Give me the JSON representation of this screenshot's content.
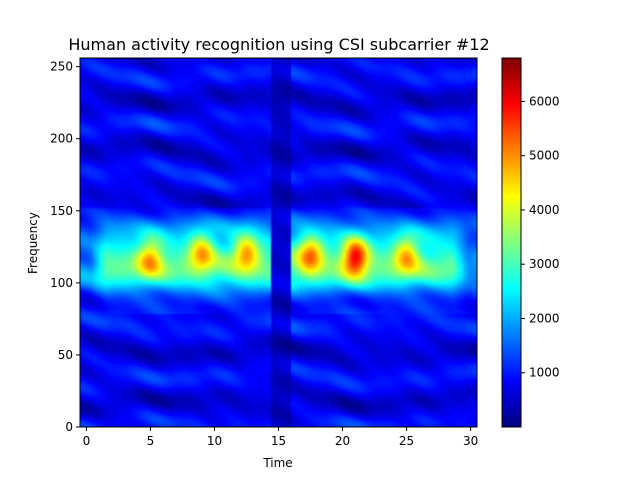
{
  "chart_data": {
    "type": "heatmap",
    "title": "Human activity recognition using CSI subcarrier #12",
    "xlabel": "Time",
    "ylabel": "Frequency",
    "xlim": [
      -0.5,
      30.5
    ],
    "ylim": [
      0,
      256
    ],
    "x_ticks": [
      0,
      5,
      10,
      15,
      20,
      25,
      30
    ],
    "y_ticks": [
      0,
      50,
      100,
      150,
      200,
      250
    ],
    "colormap": "jet",
    "colorbar": {
      "vmin": 0,
      "vmax": 6800,
      "ticks": [
        1000,
        2000,
        3000,
        4000,
        5000,
        6000
      ]
    },
    "grid": false,
    "legend": "none",
    "description_of_values": {
      "background_level": 900,
      "band_center_frequency": 115,
      "band_half_width": 28,
      "band_level": 3200,
      "quiet_time_range": [
        14.5,
        16
      ]
    },
    "hotspots": [
      {
        "time": 5,
        "frequency": 118,
        "value": 5200
      },
      {
        "time": 9,
        "frequency": 122,
        "value": 5300
      },
      {
        "time": 12.5,
        "frequency": 122,
        "value": 5400
      },
      {
        "time": 17.5,
        "frequency": 120,
        "value": 5600
      },
      {
        "time": 21,
        "frequency": 118,
        "value": 6500
      },
      {
        "time": 25,
        "frequency": 120,
        "value": 5200
      }
    ]
  }
}
